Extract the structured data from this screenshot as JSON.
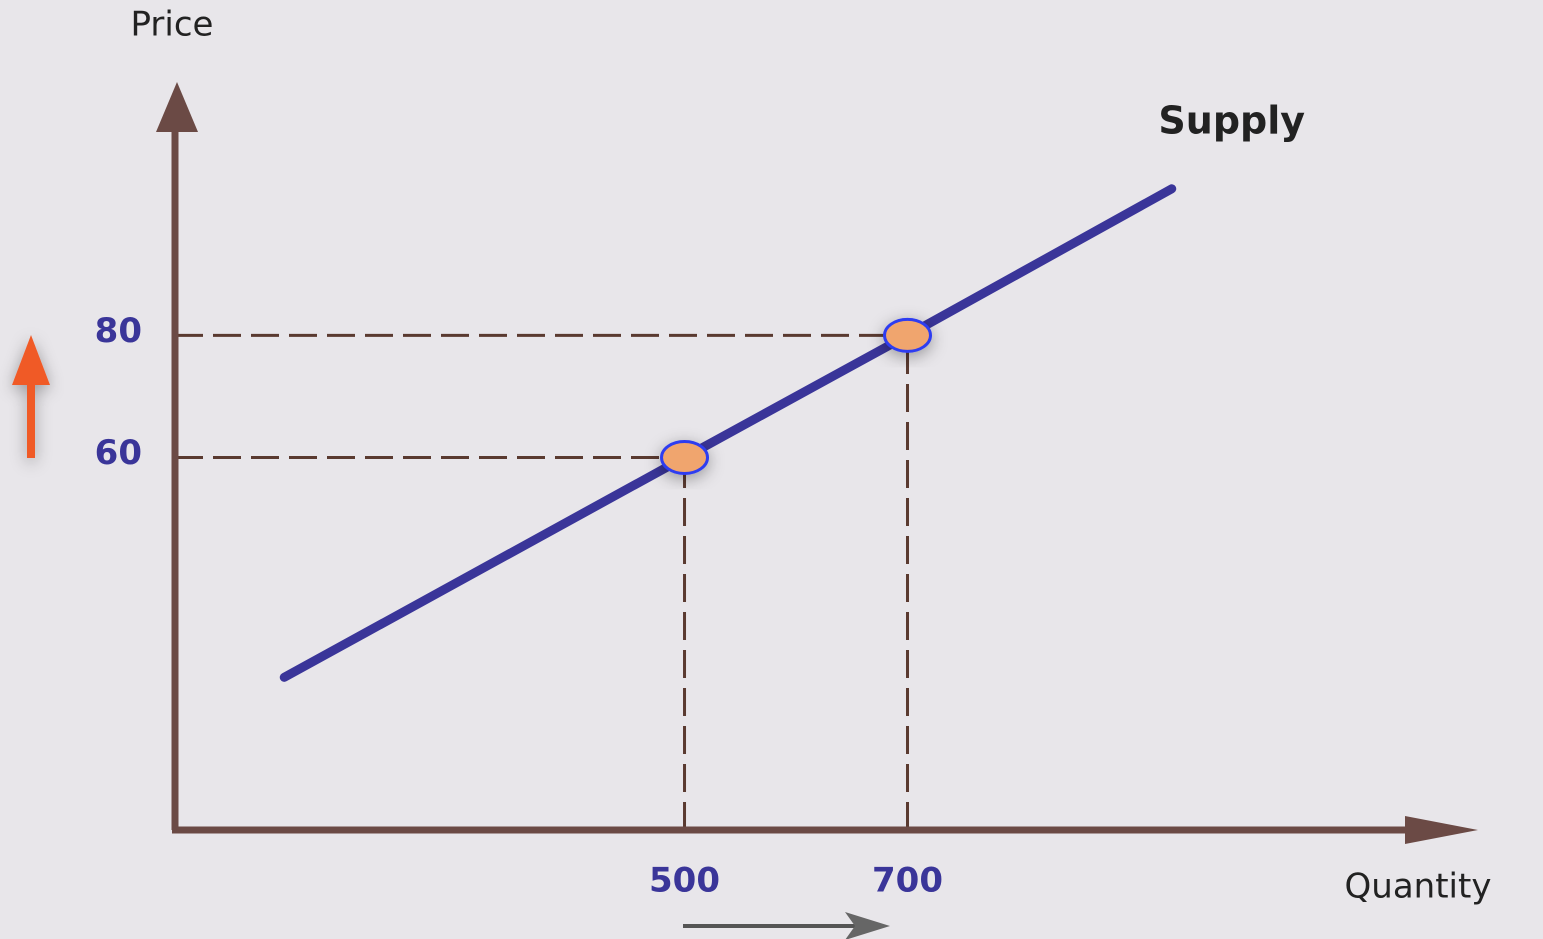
{
  "chart_data": {
    "type": "line",
    "ylabel": "Price",
    "xlabel": "Quantity",
    "series": [
      {
        "name": "Supply",
        "color": "#3a3599",
        "x": [
          141,
          500,
          700,
          937
        ],
        "values": [
          24,
          60,
          80,
          104
        ]
      }
    ],
    "xlim": [
      43,
      1209
    ],
    "ylim": [
      -1,
      121
    ],
    "xticks": [
      500,
      700
    ],
    "yticks": [
      60,
      80
    ],
    "marker_color": "#f0a56e"
  }
}
